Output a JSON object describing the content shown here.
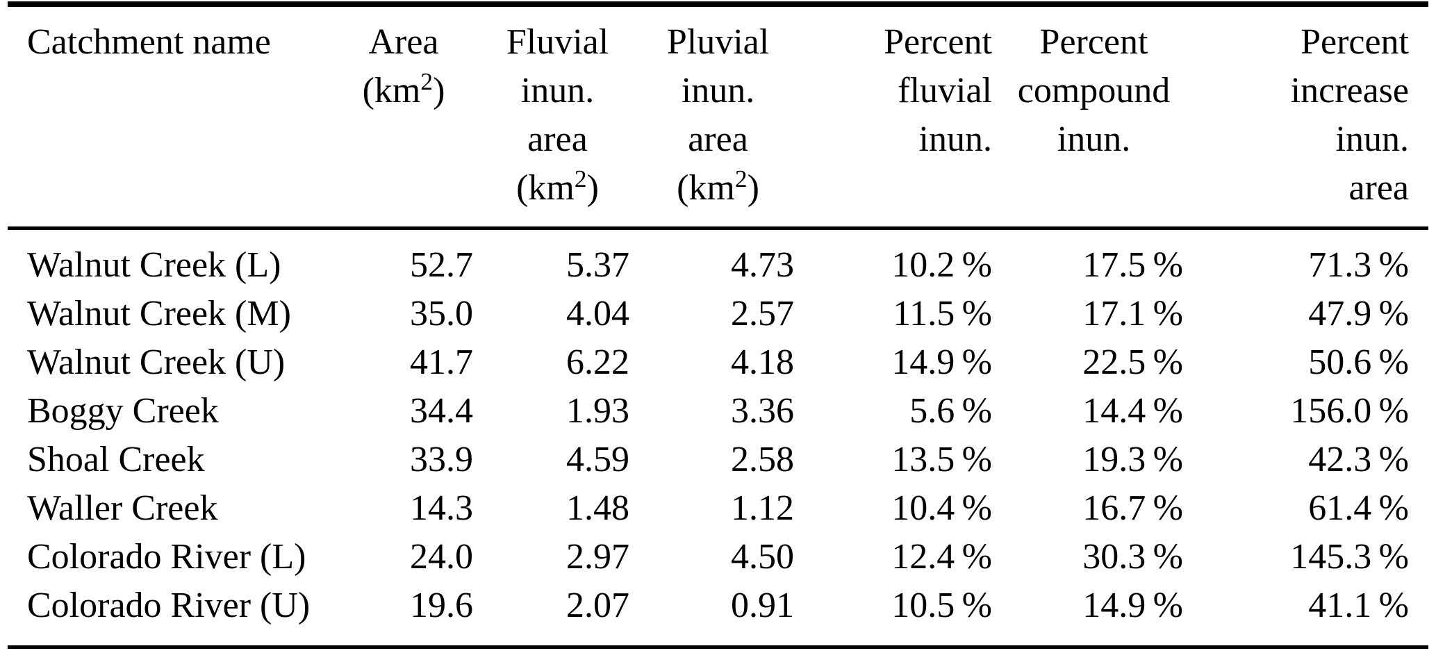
{
  "chart_data": {
    "type": "table",
    "columns": [
      {
        "id": "name",
        "label": "Catchment name",
        "lines": [
          "Catchment name"
        ],
        "align": "left"
      },
      {
        "id": "area",
        "label": "Area (km²)",
        "lines": [
          "Area",
          "(km²)"
        ],
        "align": "center"
      },
      {
        "id": "fluvial",
        "label": "Fluvial inun. area (km²)",
        "lines": [
          "Fluvial",
          "inun.",
          "area",
          "(km²)"
        ],
        "align": "center"
      },
      {
        "id": "pluvial",
        "label": "Pluvial inun. area (km²)",
        "lines": [
          "Pluvial",
          "inun.",
          "area",
          "(km²)"
        ],
        "align": "center"
      },
      {
        "id": "pct-fluvial",
        "label": "Percent fluvial inun.",
        "lines": [
          "Percent",
          "fluvial",
          "inun."
        ],
        "align": "right"
      },
      {
        "id": "pct-compound",
        "label": "Percent compound inun.",
        "lines": [
          "Percent",
          "compound",
          "inun."
        ],
        "align": "center"
      },
      {
        "id": "pct-increase",
        "label": "Percent increase inun. area",
        "lines": [
          "Percent",
          "increase",
          "inun.",
          "area"
        ],
        "align": "right"
      }
    ],
    "rows": [
      [
        "Walnut Creek (L)",
        "52.7",
        "5.37",
        "4.73",
        "10.2 %",
        "17.5 %",
        "71.3 %"
      ],
      [
        "Walnut Creek (M)",
        "35.0",
        "4.04",
        "2.57",
        "11.5 %",
        "17.1 %",
        "47.9 %"
      ],
      [
        "Walnut Creek (U)",
        "41.7",
        "6.22",
        "4.18",
        "14.9 %",
        "22.5 %",
        "50.6 %"
      ],
      [
        "Boggy Creek",
        "34.4",
        "1.93",
        "3.36",
        "5.6 %",
        "14.4 %",
        "156.0 %"
      ],
      [
        "Shoal Creek",
        "33.9",
        "4.59",
        "2.58",
        "13.5 %",
        "19.3 %",
        "42.3 %"
      ],
      [
        "Waller Creek",
        "14.3",
        "1.48",
        "1.12",
        "10.4 %",
        "16.7 %",
        "61.4 %"
      ],
      [
        "Colorado River (L)",
        "24.0",
        "2.97",
        "4.50",
        "12.4 %",
        "30.3 %",
        "145.3 %"
      ],
      [
        "Colorado River (U)",
        "19.6",
        "2.07",
        "0.91",
        "10.5 %",
        "14.9 %",
        "41.1 %"
      ]
    ],
    "text_color": "#000000",
    "background_color": "#ffffff",
    "rule_color": "#000000"
  }
}
